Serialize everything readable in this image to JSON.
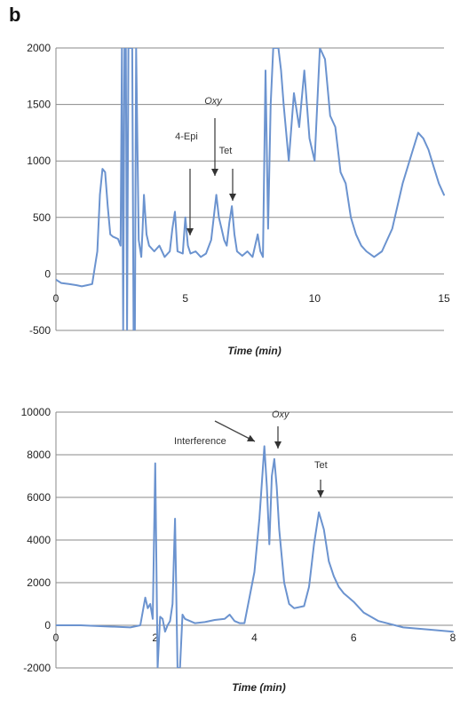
{
  "panel_label": "b",
  "chart_data": [
    {
      "type": "line",
      "xlabel": "Time (min)",
      "ylabel": "",
      "xlim": [
        0,
        15
      ],
      "ylim": [
        -500,
        2000
      ],
      "x_ticks": [
        "0",
        "5",
        "10",
        "15"
      ],
      "y_ticks": [
        "-500",
        "0",
        "500",
        "1000",
        "1500",
        "2000"
      ],
      "grid": true,
      "annotations": [
        {
          "text": "4-Epi",
          "x": 5.2,
          "y": 280,
          "style": "normal"
        },
        {
          "text": "Oxy",
          "x": 6.2,
          "y": 800,
          "style": "italic"
        },
        {
          "text": "Tet",
          "x": 6.8,
          "y": 680,
          "style": "normal"
        }
      ],
      "series": [
        {
          "x": [
            0.0,
            0.2,
            0.5,
            0.8,
            1.0,
            1.2,
            1.4,
            1.6,
            1.7,
            1.8,
            1.9,
            2.0,
            2.1,
            2.2,
            2.3,
            2.4,
            2.5,
            2.55,
            2.6,
            2.65,
            2.7,
            2.75,
            2.8,
            2.9,
            2.95,
            3.0,
            3.05,
            3.1,
            3.2,
            3.3,
            3.35,
            3.4,
            3.5,
            3.6,
            3.8,
            4.0,
            4.2,
            4.4,
            4.5,
            4.6,
            4.7,
            4.9,
            5.0,
            5.1,
            5.2,
            5.4,
            5.6,
            5.8,
            6.0,
            6.1,
            6.2,
            6.3,
            6.4,
            6.5,
            6.6,
            6.7,
            6.8,
            6.9,
            7.0,
            7.2,
            7.4,
            7.6,
            7.8,
            7.9,
            8.0,
            8.1,
            8.2,
            8.3,
            8.4,
            8.5,
            8.6,
            8.7,
            8.8,
            9.0,
            9.2,
            9.4,
            9.6,
            9.8,
            10.0,
            10.2,
            10.4,
            10.6,
            10.8,
            11.0,
            11.2,
            11.4,
            11.6,
            11.8,
            12.0,
            12.3,
            12.6,
            13.0,
            13.4,
            13.8,
            14.0,
            14.2,
            14.4,
            14.6,
            14.8,
            15.0
          ],
          "y": [
            -50,
            -80,
            -90,
            -100,
            -110,
            -100,
            -90,
            200,
            700,
            930,
            900,
            600,
            350,
            330,
            320,
            310,
            250,
            2000,
            -500,
            2000,
            2000,
            -500,
            2000,
            2000,
            2000,
            -500,
            -500,
            2000,
            300,
            150,
            400,
            700,
            350,
            250,
            200,
            250,
            150,
            200,
            400,
            550,
            200,
            180,
            500,
            250,
            180,
            200,
            150,
            180,
            300,
            500,
            700,
            500,
            400,
            300,
            250,
            450,
            600,
            350,
            200,
            160,
            200,
            150,
            350,
            200,
            150,
            1800,
            400,
            1500,
            2000,
            2000,
            2000,
            1800,
            1500,
            1000,
            1600,
            1300,
            1800,
            1200,
            1000,
            2000,
            1900,
            1400,
            1300,
            900,
            800,
            500,
            350,
            250,
            200,
            150,
            200,
            400,
            800,
            1100,
            1250,
            1200,
            1100,
            950,
            800,
            700
          ]
        }
      ]
    },
    {
      "type": "line",
      "xlabel": "Time (min)",
      "ylabel": "",
      "xlim": [
        0,
        8
      ],
      "ylim": [
        -2000,
        10000
      ],
      "x_ticks": [
        "0",
        "2",
        "4",
        "6",
        "8"
      ],
      "y_ticks": [
        "-2000",
        "0",
        "2000",
        "4000",
        "6000",
        "8000",
        "10000"
      ],
      "grid": true,
      "annotations": [
        {
          "text": "Interference",
          "x": 4.2,
          "y": 8300,
          "style": "normal"
        },
        {
          "text": "Oxy",
          "x": 4.45,
          "y": 8000,
          "style": "italic"
        },
        {
          "text": "Tet",
          "x": 5.3,
          "y": 5500,
          "style": "normal"
        }
      ],
      "series": [
        {
          "x": [
            0.0,
            0.5,
            1.0,
            1.5,
            1.7,
            1.8,
            1.85,
            1.9,
            1.95,
            2.0,
            2.05,
            2.1,
            2.15,
            2.2,
            2.25,
            2.3,
            2.35,
            2.4,
            2.45,
            2.5,
            2.55,
            2.6,
            2.7,
            2.8,
            3.0,
            3.2,
            3.4,
            3.5,
            3.6,
            3.7,
            3.8,
            4.0,
            4.1,
            4.2,
            4.25,
            4.3,
            4.35,
            4.4,
            4.45,
            4.5,
            4.6,
            4.7,
            4.8,
            5.0,
            5.1,
            5.2,
            5.3,
            5.4,
            5.5,
            5.6,
            5.7,
            5.8,
            5.9,
            6.0,
            6.2,
            6.5,
            7.0,
            7.5,
            8.0
          ],
          "y": [
            0,
            0,
            -50,
            -100,
            0,
            1300,
            800,
            1000,
            300,
            7600,
            -2000,
            400,
            300,
            -300,
            0,
            200,
            1000,
            5000,
            -2000,
            -2000,
            500,
            300,
            200,
            100,
            150,
            250,
            300,
            500,
            200,
            100,
            100,
            2500,
            5000,
            8400,
            6500,
            3800,
            7000,
            7800,
            6500,
            4500,
            2000,
            1000,
            800,
            900,
            1800,
            3800,
            5300,
            4500,
            3000,
            2300,
            1800,
            1500,
            1300,
            1100,
            600,
            200,
            -100,
            -200,
            -300
          ]
        }
      ]
    }
  ]
}
